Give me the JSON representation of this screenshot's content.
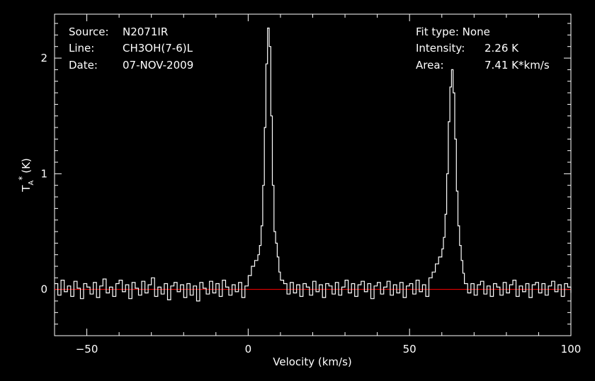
{
  "header": {
    "source_label": "Source:",
    "source_value": "N2071IR",
    "line_label": "Line:",
    "line_value": "CH3OH(7-6)L",
    "date_label": "Date:",
    "date_value": "07-NOV-2009",
    "fit_type": "Fit type: None",
    "intensity_label": "Intensity:",
    "intensity_value": "2.26 K",
    "area_label": "Area:",
    "area_value": "7.41 K*km/s"
  },
  "chart_data": {
    "type": "line",
    "xlabel": "Velocity (km/s)",
    "ylabel_main": "T",
    "ylabel_sub": "A",
    "ylabel_sup": "*",
    "ylabel_unit": "(K)",
    "xlim": [
      -60,
      100
    ],
    "ylim": [
      -0.4,
      2.38
    ],
    "x_ticks": [
      -50,
      0,
      50,
      100
    ],
    "y_ticks": [
      0,
      1,
      2
    ],
    "baseline": 0,
    "colors": {
      "spectrum": "#ffffff",
      "baseline": "#ff0000",
      "axes": "#ffffff"
    },
    "series": [
      {
        "values": [
          [
            -60,
            0.05
          ],
          [
            -59,
            -0.05
          ],
          [
            -58,
            0.08
          ],
          [
            -57,
            -0.02
          ],
          [
            -56,
            0.03
          ],
          [
            -55,
            -0.06
          ],
          [
            -54,
            0.07
          ],
          [
            -53,
            0.01
          ],
          [
            -52,
            -0.08
          ],
          [
            -51,
            0.05
          ],
          [
            -50,
            0.02
          ],
          [
            -49,
            -0.04
          ],
          [
            -48,
            0.06
          ],
          [
            -47,
            -0.07
          ],
          [
            -46,
            0.03
          ],
          [
            -45,
            0.09
          ],
          [
            -44,
            -0.03
          ],
          [
            -43,
            0.02
          ],
          [
            -42,
            -0.06
          ],
          [
            -41,
            0.05
          ],
          [
            -40,
            0.08
          ],
          [
            -39,
            -0.02
          ],
          [
            -38,
            0.04
          ],
          [
            -37,
            -0.08
          ],
          [
            -36,
            0.06
          ],
          [
            -35,
            0.01
          ],
          [
            -34,
            -0.05
          ],
          [
            -33,
            0.07
          ],
          [
            -32,
            -0.03
          ],
          [
            -31,
            0.04
          ],
          [
            -30,
            0.1
          ],
          [
            -29,
            -0.06
          ],
          [
            -28,
            0.02
          ],
          [
            -27,
            -0.04
          ],
          [
            -26,
            0.05
          ],
          [
            -25,
            -0.09
          ],
          [
            -24,
            0.03
          ],
          [
            -23,
            0.06
          ],
          [
            -22,
            -0.02
          ],
          [
            -21,
            0.04
          ],
          [
            -20,
            -0.07
          ],
          [
            -19,
            0.05
          ],
          [
            -18,
            -0.05
          ],
          [
            -17,
            0.03
          ],
          [
            -16,
            -0.1
          ],
          [
            -15,
            0.06
          ],
          [
            -14,
            0.01
          ],
          [
            -13,
            -0.04
          ],
          [
            -12,
            0.07
          ],
          [
            -11,
            -0.03
          ],
          [
            -10,
            0.05
          ],
          [
            -9,
            -0.06
          ],
          [
            -8,
            0.08
          ],
          [
            -7,
            0.02
          ],
          [
            -6,
            -0.05
          ],
          [
            -5,
            0.04
          ],
          [
            -4,
            -0.02
          ],
          [
            -3,
            0.06
          ],
          [
            -2,
            -0.07
          ],
          [
            -1,
            0.03
          ],
          [
            0,
            0.12
          ],
          [
            1,
            0.2
          ],
          [
            2,
            0.25
          ],
          [
            3,
            0.3
          ],
          [
            3.5,
            0.38
          ],
          [
            4,
            0.55
          ],
          [
            4.5,
            0.9
          ],
          [
            5,
            1.4
          ],
          [
            5.5,
            1.95
          ],
          [
            6,
            2.26
          ],
          [
            6.5,
            2.1
          ],
          [
            7,
            1.5
          ],
          [
            7.5,
            0.9
          ],
          [
            8,
            0.5
          ],
          [
            8.5,
            0.4
          ],
          [
            9,
            0.28
          ],
          [
            9.5,
            0.15
          ],
          [
            10,
            0.08
          ],
          [
            11,
            0.05
          ],
          [
            12,
            -0.04
          ],
          [
            13,
            0.06
          ],
          [
            14,
            -0.03
          ],
          [
            15,
            0.04
          ],
          [
            16,
            -0.06
          ],
          [
            17,
            0.05
          ],
          [
            18,
            0.02
          ],
          [
            19,
            -0.05
          ],
          [
            20,
            0.07
          ],
          [
            21,
            -0.02
          ],
          [
            22,
            0.04
          ],
          [
            23,
            -0.07
          ],
          [
            24,
            0.05
          ],
          [
            25,
            0.03
          ],
          [
            26,
            -0.04
          ],
          [
            27,
            0.06
          ],
          [
            28,
            -0.05
          ],
          [
            29,
            0.02
          ],
          [
            30,
            0.08
          ],
          [
            31,
            -0.03
          ],
          [
            32,
            0.05
          ],
          [
            33,
            -0.06
          ],
          [
            34,
            0.04
          ],
          [
            35,
            0.07
          ],
          [
            36,
            -0.02
          ],
          [
            37,
            0.05
          ],
          [
            38,
            -0.08
          ],
          [
            39,
            0.03
          ],
          [
            40,
            0.06
          ],
          [
            41,
            -0.04
          ],
          [
            42,
            0.02
          ],
          [
            43,
            0.07
          ],
          [
            44,
            -0.05
          ],
          [
            45,
            0.04
          ],
          [
            46,
            -0.03
          ],
          [
            47,
            0.06
          ],
          [
            48,
            -0.07
          ],
          [
            49,
            0.03
          ],
          [
            50,
            0.05
          ],
          [
            51,
            -0.04
          ],
          [
            52,
            0.08
          ],
          [
            53,
            -0.02
          ],
          [
            54,
            0.04
          ],
          [
            55,
            -0.06
          ],
          [
            56,
            0.1
          ],
          [
            57,
            0.15
          ],
          [
            58,
            0.22
          ],
          [
            59,
            0.28
          ],
          [
            60,
            0.35
          ],
          [
            60.5,
            0.45
          ],
          [
            61,
            0.65
          ],
          [
            61.5,
            1.0
          ],
          [
            62,
            1.45
          ],
          [
            62.5,
            1.75
          ],
          [
            63,
            1.9
          ],
          [
            63.5,
            1.7
          ],
          [
            64,
            1.3
          ],
          [
            64.5,
            0.85
          ],
          [
            65,
            0.55
          ],
          [
            65.5,
            0.38
          ],
          [
            66,
            0.25
          ],
          [
            66.5,
            0.14
          ],
          [
            67,
            0.05
          ],
          [
            68,
            -0.03
          ],
          [
            69,
            0.05
          ],
          [
            70,
            -0.05
          ],
          [
            71,
            0.04
          ],
          [
            72,
            0.07
          ],
          [
            73,
            -0.04
          ],
          [
            74,
            0.03
          ],
          [
            75,
            -0.06
          ],
          [
            76,
            0.05
          ],
          [
            77,
            0.02
          ],
          [
            78,
            -0.05
          ],
          [
            79,
            0.06
          ],
          [
            80,
            -0.03
          ],
          [
            81,
            0.04
          ],
          [
            82,
            0.08
          ],
          [
            83,
            -0.06
          ],
          [
            84,
            0.03
          ],
          [
            85,
            -0.02
          ],
          [
            86,
            0.05
          ],
          [
            87,
            -0.07
          ],
          [
            88,
            0.04
          ],
          [
            89,
            0.06
          ],
          [
            90,
            -0.03
          ],
          [
            91,
            0.05
          ],
          [
            92,
            -0.05
          ],
          [
            93,
            0.03
          ],
          [
            94,
            0.07
          ],
          [
            95,
            -0.02
          ],
          [
            96,
            0.04
          ],
          [
            97,
            -0.06
          ],
          [
            98,
            0.05
          ],
          [
            99,
            0.02
          ],
          [
            100,
            -0.03
          ]
        ]
      }
    ]
  }
}
